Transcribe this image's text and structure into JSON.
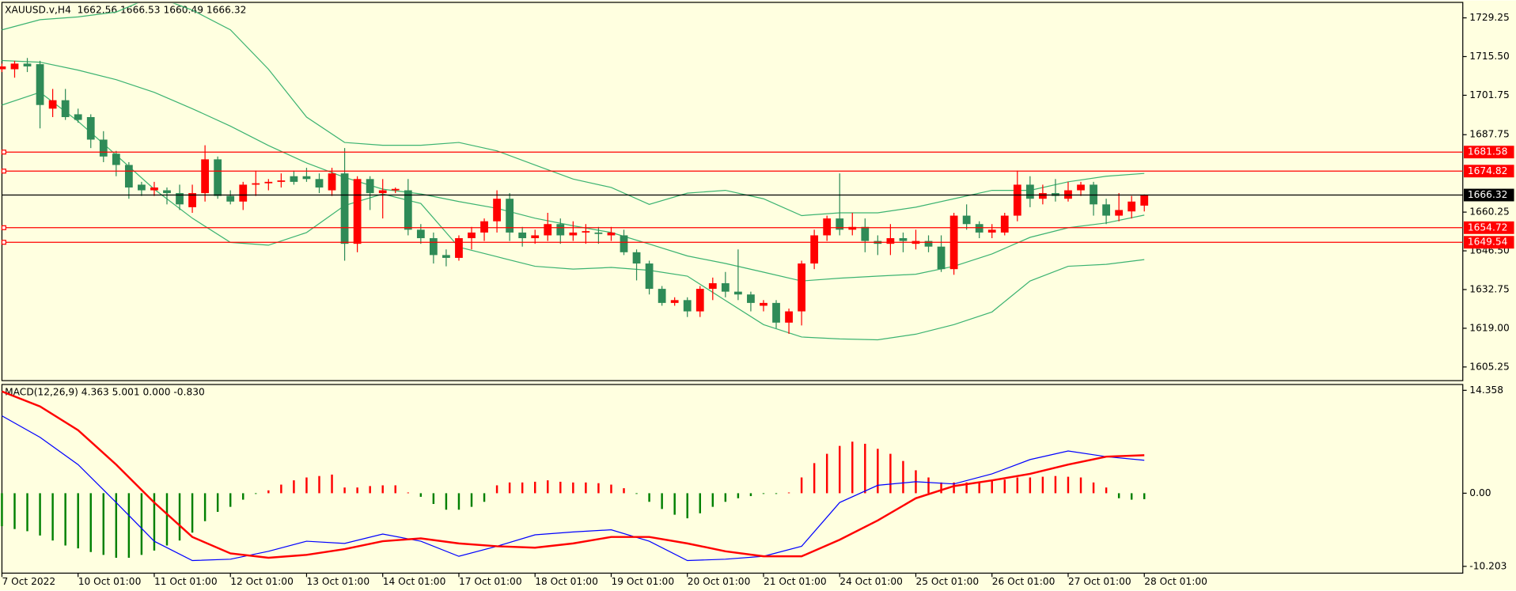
{
  "chart_data": [
    {
      "type": "candlestick",
      "title": "XAUUSD.v,H4  1662.56 1666.53 1660.49 1666.32",
      "categories": [
        "7 Oct 2022",
        null,
        null,
        null,
        null,
        null,
        "10 Oct 01:00",
        null,
        null,
        null,
        null,
        null,
        "11 Oct 01:00",
        null,
        null,
        null,
        null,
        null,
        "12 Oct 01:00",
        null,
        null,
        null,
        null,
        null,
        "13 Oct 01:00",
        null,
        null,
        null,
        null,
        null,
        "14 Oct 01:00",
        null,
        null,
        null,
        null,
        null,
        "17 Oct 01:00",
        null,
        null,
        null,
        null,
        null,
        "18 Oct 01:00",
        null,
        null,
        null,
        null,
        null,
        "19 Oct 01:00",
        null,
        null,
        null,
        null,
        null,
        "20 Oct 01:00",
        null,
        null,
        null,
        null,
        null,
        "21 Oct 01:00",
        null,
        null,
        null,
        null,
        null,
        "24 Oct 01:00",
        null,
        null,
        null,
        null,
        null,
        "25 Oct 01:00",
        null,
        null,
        null,
        null,
        null,
        "26 Oct 01:00",
        null,
        null,
        null,
        null,
        null,
        "27 Oct 01:00",
        null,
        null,
        null,
        null,
        null,
        "28 Oct 01:00"
      ],
      "open": [
        1711,
        1711,
        1713,
        1712.8,
        1697,
        1700,
        1695,
        1694,
        1686,
        1681,
        1677,
        1670,
        1668,
        1668,
        1667,
        1662,
        1667,
        1679,
        1666,
        1664,
        1670,
        1670.5,
        1671,
        1673,
        1673,
        1672,
        1668,
        1674,
        1649,
        1672,
        1667,
        1668,
        1668,
        1654,
        1651,
        1645,
        1644,
        1651,
        1653,
        1657,
        1665,
        1653,
        1651,
        1652,
        1656,
        1652,
        1653,
        1653,
        1652,
        1652,
        1646,
        1642,
        1633,
        1628,
        1629,
        1625,
        1633,
        1635,
        1632,
        1631,
        1627,
        1628,
        1621,
        1625,
        1642,
        1652,
        1658,
        1654,
        1655,
        1650,
        1649,
        1651,
        1649,
        1650,
        1648,
        1640,
        1659,
        1656,
        1653,
        1653,
        1659,
        1670,
        1665,
        1667,
        1665,
        1668,
        1670,
        1663,
        1659,
        1660.5,
        1662.56
      ],
      "high": [
        1713,
        1714,
        1715,
        1714,
        1704,
        1704,
        1697,
        1695,
        1689,
        1682,
        1678,
        1671,
        1671,
        1669,
        1670,
        1670,
        1684,
        1680,
        1668,
        1671,
        1675,
        1672,
        1674,
        1675,
        1676,
        1674,
        1676,
        1683,
        1673,
        1673,
        1672,
        1669,
        1672,
        1656,
        1653,
        1647,
        1652,
        1655,
        1658,
        1668,
        1667,
        1655,
        1654,
        1660,
        1658,
        1657,
        1656,
        1655,
        1655,
        1654,
        1647,
        1643,
        1634,
        1630,
        1630,
        1634,
        1637,
        1639,
        1647,
        1632,
        1629,
        1629,
        1626,
        1643,
        1654,
        1659,
        1674,
        1660,
        1658,
        1652,
        1656,
        1653,
        1654,
        1652,
        1652,
        1660,
        1663,
        1657,
        1656,
        1660,
        1675,
        1673,
        1670,
        1672,
        1671,
        1671,
        1671,
        1665,
        1667,
        1666,
        1666.53
      ],
      "low": [
        1710,
        1708,
        1710,
        1690,
        1694,
        1693,
        1692,
        1683,
        1678,
        1673,
        1665,
        1666,
        1666,
        1663,
        1661,
        1660,
        1664,
        1665,
        1663,
        1661,
        1666,
        1668,
        1669,
        1670,
        1671,
        1667,
        1666,
        1643,
        1646,
        1661,
        1658,
        1667,
        1652,
        1649,
        1642,
        1641,
        1643,
        1647,
        1650,
        1653,
        1650,
        1648,
        1649,
        1650,
        1649,
        1650,
        1649,
        1649,
        1650,
        1645,
        1636,
        1631,
        1627,
        1627,
        1623,
        1623,
        1629,
        1630,
        1629,
        1625,
        1625,
        1619,
        1617,
        1620,
        1640,
        1650,
        1652,
        1652,
        1646,
        1645,
        1645,
        1646,
        1647,
        1646,
        1639,
        1638,
        1654,
        1651,
        1651,
        1652,
        1657,
        1662,
        1663,
        1664,
        1664,
        1666,
        1659,
        1656,
        1657,
        1658,
        1660.49
      ],
      "close": [
        1712,
        1713,
        1712,
        1698.3,
        1700,
        1694,
        1693,
        1686,
        1680,
        1677,
        1669,
        1668,
        1669,
        1667,
        1663,
        1667,
        1679,
        1666,
        1664,
        1670,
        1670.5,
        1671,
        1671.5,
        1671,
        1672,
        1669,
        1674,
        1649,
        1672,
        1667,
        1668,
        1668.5,
        1654,
        1651,
        1645,
        1644,
        1651,
        1653,
        1657,
        1665,
        1653,
        1651,
        1652,
        1656,
        1652,
        1653,
        1653.5,
        1652.5,
        1653,
        1646,
        1642,
        1633,
        1628,
        1629,
        1625,
        1633,
        1635,
        1632,
        1631,
        1628,
        1628,
        1621,
        1625,
        1642,
        1652,
        1658,
        1654,
        1655,
        1650,
        1649,
        1651,
        1650,
        1650,
        1648,
        1640,
        1659,
        1656,
        1653,
        1654,
        1659,
        1670,
        1665,
        1667,
        1666,
        1668,
        1670,
        1663,
        1659,
        1661,
        1664,
        1666.32
      ],
      "up_color": "#ff0000",
      "down_color": "#2e8b57",
      "bands": [
        {
          "color": "#3cb371",
          "x": [
            0,
            3,
            6,
            9,
            12,
            15,
            18,
            21,
            24,
            27,
            30,
            33,
            36,
            39,
            42,
            45,
            48,
            51,
            54,
            57,
            60,
            63,
            66,
            69,
            72,
            75,
            78,
            81,
            84,
            87,
            90
          ],
          "values": [
            1725,
            1728.6,
            1729.6,
            1731.3,
            1737,
            1732,
            1725,
            1711,
            1694,
            1685,
            1684,
            1684,
            1685,
            1682,
            1677,
            1672,
            1669,
            1663,
            1667,
            1668,
            1665,
            1659,
            1660,
            1660,
            1662,
            1665,
            1668,
            1668,
            1671,
            1673,
            1674
          ]
        },
        {
          "color": "#3cb371",
          "x": [
            0,
            3,
            6,
            9,
            12,
            15,
            18,
            21,
            24,
            27,
            30,
            33,
            36,
            39,
            42,
            45,
            48,
            51,
            54,
            57,
            60,
            63,
            66,
            69,
            72,
            75,
            78,
            81,
            84,
            87,
            90
          ],
          "values": [
            1714.1,
            1713.5,
            1710.7,
            1707.3,
            1702.8,
            1697,
            1690.8,
            1683.9,
            1677.7,
            1672.6,
            1668.4,
            1666.7,
            1664,
            1661.6,
            1658.1,
            1655.4,
            1653,
            1648.9,
            1644.7,
            1642,
            1638.9,
            1635.8,
            1636.8,
            1637.5,
            1638.2,
            1641,
            1645.4,
            1651.3,
            1654.7,
            1656.4,
            1659.2
          ]
        },
        {
          "color": "#3cb371",
          "x": [
            0,
            3,
            6,
            9,
            12,
            15,
            18,
            21,
            24,
            27,
            30,
            33,
            36,
            39,
            42,
            45,
            48,
            51,
            54,
            57,
            60,
            63,
            66,
            69,
            72,
            75,
            78,
            81,
            84,
            87,
            90
          ],
          "values": [
            1698.3,
            1702.8,
            1692.5,
            1680.5,
            1668.4,
            1658.1,
            1649.5,
            1648.5,
            1653,
            1662.6,
            1666.7,
            1663.3,
            1647.8,
            1644.4,
            1641,
            1640,
            1640.6,
            1639.6,
            1637.5,
            1628.9,
            1620.3,
            1615.9,
            1615.2,
            1614.9,
            1616.9,
            1620.3,
            1624.8,
            1635.8,
            1641,
            1641.7,
            1643.4
          ]
        }
      ],
      "levels": [
        {
          "value": 1681.58,
          "color": "#ff0000"
        },
        {
          "value": 1674.82,
          "color": "#ff0000"
        },
        {
          "value": 1666.32,
          "color": "#000000"
        },
        {
          "value": 1654.72,
          "color": "#ff0000"
        },
        {
          "value": 1649.54,
          "color": "#ff0000"
        }
      ],
      "ylim": [
        1600.4,
        1734.4
      ],
      "yticks": [
        1729.25,
        {
          "value": 1715.5,
          "label": "1715.50"
        },
        1701.75,
        1687.75,
        1660.25,
        {
          "value": 1646.5,
          "label": "1646.50"
        },
        1632.75,
        {
          "value": 1619,
          "label": "1619.00"
        },
        1605.25
      ]
    },
    {
      "type": "macd",
      "title": "MACD(12,26,9) 4.363 5.001 0.000 -0.830",
      "histogram": {
        "color": "#ff0000",
        "negative_color": "#008000",
        "values": [
          -4.6,
          -5.0,
          -5.3,
          -5.9,
          -6.6,
          -7.3,
          -7.7,
          -8.2,
          -8.6,
          -9.0,
          -9.0,
          -8.6,
          -8.0,
          -7.3,
          -6.6,
          -5.5,
          -3.9,
          -2.6,
          -1.9,
          -0.9,
          -0.1,
          0.4,
          1.2,
          1.8,
          2.2,
          2.4,
          2.6,
          0.8,
          0.8,
          1.0,
          1.1,
          1.1,
          0.1,
          -0.5,
          -1.5,
          -2.3,
          -2.3,
          -1.9,
          -1.2,
          1.1,
          1.5,
          1.5,
          1.6,
          1.8,
          1.6,
          1.5,
          1.5,
          1.4,
          1.2,
          0.7,
          -0.1,
          -1.2,
          -2.2,
          -3.0,
          -3.5,
          -2.8,
          -1.9,
          -1.2,
          -0.7,
          -0.4,
          -0.1,
          -0.1,
          0.1,
          2.2,
          4.2,
          5.5,
          6.6,
          7.2,
          6.9,
          6.2,
          5.5,
          4.5,
          3.2,
          2.2,
          1.5,
          1.5,
          1.5,
          1.6,
          1.8,
          1.9,
          2.2,
          2.2,
          2.3,
          2.4,
          2.3,
          2.2,
          1.5,
          0.8,
          -0.7,
          -0.9,
          -0.83
        ]
      },
      "series": [
        {
          "color": "#0000ff",
          "width": 1,
          "x": [
            0,
            3,
            6,
            9,
            12,
            15,
            18,
            21,
            24,
            27,
            30,
            33,
            36,
            39,
            42,
            45,
            48,
            51,
            54,
            57,
            60,
            63,
            66,
            69,
            72,
            75,
            78,
            81,
            84,
            87,
            90
          ],
          "values": [
            10.8,
            7.8,
            4.0,
            -1.3,
            -6.7,
            -9.4,
            -9.2,
            -8.1,
            -6.7,
            -7.0,
            -5.7,
            -6.7,
            -8.8,
            -7.4,
            -5.8,
            -5.4,
            -5.1,
            -6.7,
            -9.4,
            -9.2,
            -8.8,
            -7.4,
            -1.3,
            1.1,
            1.6,
            1.3,
            2.7,
            4.7,
            5.9,
            5.1,
            4.6
          ]
        },
        {
          "color": "#ff0000",
          "width": 2,
          "x": [
            0,
            3,
            6,
            9,
            12,
            15,
            18,
            21,
            24,
            27,
            30,
            33,
            36,
            39,
            42,
            45,
            48,
            51,
            54,
            57,
            60,
            63,
            66,
            69,
            72,
            75,
            78,
            81,
            84,
            87,
            90
          ],
          "values": [
            14.2,
            12.1,
            8.8,
            4.0,
            -1.3,
            -6.1,
            -8.4,
            -9.0,
            -8.6,
            -7.8,
            -6.7,
            -6.3,
            -7.0,
            -7.4,
            -7.6,
            -7.0,
            -6.1,
            -6.1,
            -7.0,
            -8.1,
            -8.8,
            -8.8,
            -6.5,
            -3.8,
            -0.7,
            1.0,
            1.8,
            2.7,
            4.0,
            5.1,
            5.3
          ]
        }
      ],
      "ylim": [
        -11.15,
        15.17
      ],
      "yticks": [
        14.358,
        {
          "value": 0,
          "label": "0.00"
        },
        -10.203
      ]
    }
  ]
}
